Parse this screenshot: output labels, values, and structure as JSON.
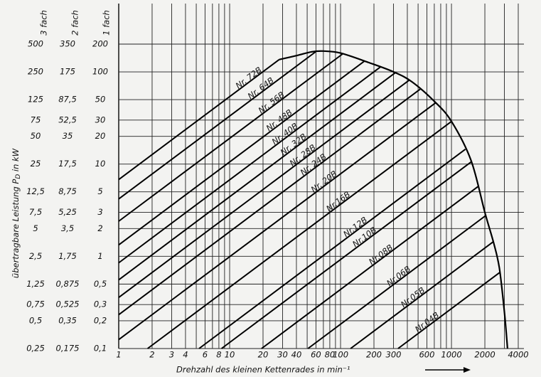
{
  "chart_data": {
    "type": "line",
    "xscale": "log",
    "yscale": "log",
    "xlabel": "Drehzahl des kleinen Kettenrades in min⁻¹",
    "ylabel": [
      "übertragbare Leistung P",
      "D",
      " in kW"
    ],
    "xlim": [
      1,
      4000
    ],
    "xticks": [
      1,
      2,
      3,
      4,
      6,
      8,
      10,
      20,
      30,
      40,
      60,
      80,
      100,
      200,
      300,
      600,
      1000,
      2000,
      4000
    ],
    "xminor": [
      5,
      7,
      9,
      50,
      70,
      90,
      400,
      500,
      700,
      800,
      900,
      3000
    ],
    "y_name": "1 fach",
    "ylim": [
      0.1,
      200
    ],
    "yticks": [
      200,
      100,
      50,
      30,
      20,
      10,
      5,
      3,
      2,
      1,
      {
        "value": 0.5,
        "label": "0,5"
      },
      {
        "value": 0.3,
        "label": "0,3"
      },
      {
        "value": 0.2,
        "label": "0,2"
      },
      {
        "value": 0.1,
        "label": "0,1"
      }
    ],
    "y2_name": "2 fach",
    "y2lim": [
      0.175,
      350
    ],
    "y2ticks": [
      350,
      175,
      {
        "value": 87.5,
        "label": "87,5"
      },
      {
        "value": 52.5,
        "label": "52,5"
      },
      35,
      {
        "value": 17.5,
        "label": "17,5"
      },
      {
        "value": 8.75,
        "label": "8,75"
      },
      {
        "value": 5.25,
        "label": "5,25"
      },
      {
        "value": 3.5,
        "label": "3,5"
      },
      {
        "value": 1.75,
        "label": "1,75"
      },
      {
        "value": 0.875,
        "label": "0,875"
      },
      {
        "value": 0.525,
        "label": "0,525"
      },
      {
        "value": 0.35,
        "label": "0,35"
      },
      {
        "value": 0.175,
        "label": "0,175"
      }
    ],
    "y3_name": "3 fach",
    "y3lim": [
      0.25,
      500
    ],
    "y3ticks": [
      500,
      250,
      125,
      75,
      50,
      25,
      {
        "value": 12.5,
        "label": "12,5"
      },
      {
        "value": 7.5,
        "label": "7,5"
      },
      5,
      {
        "value": 2.5,
        "label": "2,5"
      },
      {
        "value": 1.25,
        "label": "1,25"
      },
      {
        "value": 0.75,
        "label": "0,75"
      },
      {
        "value": 0.5,
        "label": "0,5"
      },
      {
        "value": 0.25,
        "label": "0,25"
      }
    ],
    "color": "#000000",
    "grid": true,
    "series": [
      {
        "name": "Nr. 72B",
        "x": [
          1,
          28
        ],
        "values": [
          6.8,
          136
        ]
      },
      {
        "name": "Nr. 64B",
        "x": [
          1,
          60
        ],
        "values": [
          4.19,
          166
        ]
      },
      {
        "name": "Nr. 56B",
        "x": [
          1,
          104
        ],
        "values": [
          2.4,
          156
        ]
      },
      {
        "name": "Nr. 48B",
        "x": [
          1,
          163
        ],
        "values": [
          1.33,
          130
        ]
      },
      {
        "name": "Nr. 40B",
        "x": [
          1,
          229
        ],
        "values": [
          0.85,
          113
        ]
      },
      {
        "name": "Nr. 32B",
        "x": [
          1,
          312
        ],
        "values": [
          0.556,
          98
        ]
      },
      {
        "name": "Nr. 28B",
        "x": [
          1,
          414
        ],
        "values": [
          0.358,
          81
        ]
      },
      {
        "name": "Nr. 24B",
        "x": [
          1,
          523
        ],
        "values": [
          0.233,
          65
        ]
      },
      {
        "name": "Nr. 20B",
        "x": [
          1,
          716
        ],
        "values": [
          0.125,
          46
        ]
      },
      {
        "name": "Nr.16B",
        "x": [
          1.82,
          1000
        ],
        "values": [
          0.1,
          29
        ]
      },
      {
        "name": "Nr.12B",
        "x": [
          5.3,
          1334
        ],
        "values": [
          0.1,
          14.5
        ]
      },
      {
        "name": "Nr.10B",
        "x": [
          8.45,
          1510
        ],
        "values": [
          0.1,
          10.6
        ]
      },
      {
        "name": "Nr.08B",
        "x": [
          19.4,
          1733
        ],
        "values": [
          0.1,
          5.7
        ]
      },
      {
        "name": "Nr.06B",
        "x": [
          50.8,
          2037
        ],
        "values": [
          0.1,
          2.77
        ]
      },
      {
        "name": "Nr.05B",
        "x": [
          123,
          2384
        ],
        "values": [
          0.1,
          1.44
        ]
      },
      {
        "name": "Nr.04B",
        "x": [
          330,
          2729
        ],
        "values": [
          0.1,
          0.67
        ]
      }
    ],
    "envelope": {
      "x": [
        28,
        40,
        55,
        70,
        100,
        180,
        300,
        440,
        700,
        1000,
        1500,
        2000,
        2400,
        2700,
        3000,
        3200
      ],
      "values": [
        136,
        150,
        165,
        168,
        160,
        126,
        100,
        78,
        48,
        29,
        11,
        3,
        1.4,
        0.75,
        0.25,
        0.1
      ]
    }
  }
}
